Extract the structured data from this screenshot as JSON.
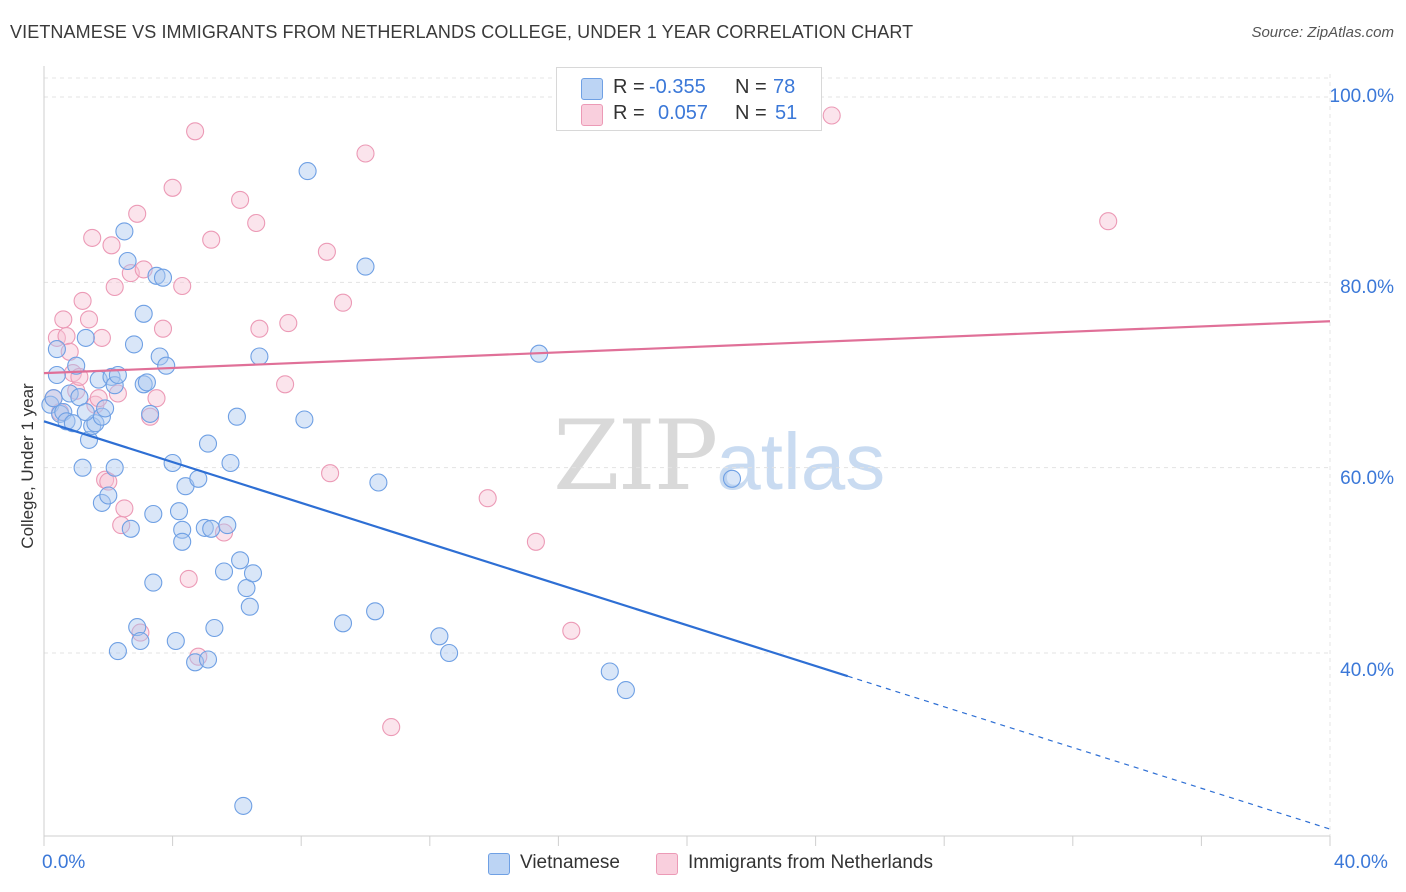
{
  "chart_data": {
    "type": "scatter",
    "title": "VIETNAMESE VS IMMIGRANTS FROM NETHERLANDS COLLEGE, UNDER 1 YEAR CORRELATION CHART",
    "source": "Source: ZipAtlas.com",
    "ylabel": "College, Under 1 year",
    "xlabel": "",
    "xlim": [
      0,
      40
    ],
    "ylim": [
      20,
      104
    ],
    "x_tick_labels": [
      "0.0%",
      "40.0%"
    ],
    "y_ticks": [
      40,
      60,
      80,
      100
    ],
    "y_tick_labels": [
      "40.0%",
      "60.0%",
      "80.0%",
      "100.0%"
    ],
    "grid": true,
    "legend_position": "top-center",
    "colors": {
      "vietnamese": "#6fa0e4",
      "vietnamese_fill": "#aac8f0",
      "vietnamese_line": "#2e6fd4",
      "netherlands": "#ec9ab6",
      "netherlands_fill": "#f6c3d4",
      "netherlands_line": "#e07098",
      "tick_text": "#3b78d8"
    },
    "series": [
      {
        "name": "Vietnamese",
        "r_label": "R =",
        "r_value": "-0.355",
        "n_label": "N =",
        "n_value": "78",
        "trend": {
          "x0": 0,
          "y0": 65.0,
          "x1": 25.0,
          "y1": 37.5,
          "dash_to_x": 40,
          "dash_to_y": 21.0
        },
        "points": [
          [
            0.2,
            66.8
          ],
          [
            0.3,
            67.5
          ],
          [
            0.4,
            70.0
          ],
          [
            0.5,
            65.8
          ],
          [
            0.4,
            72.8
          ],
          [
            0.6,
            66.0
          ],
          [
            0.7,
            65.0
          ],
          [
            0.8,
            68.0
          ],
          [
            0.9,
            64.8
          ],
          [
            1.0,
            71.0
          ],
          [
            1.1,
            67.6
          ],
          [
            1.2,
            60.0
          ],
          [
            1.3,
            74.0
          ],
          [
            1.4,
            63.0
          ],
          [
            1.5,
            64.5
          ],
          [
            1.6,
            64.8
          ],
          [
            1.7,
            69.5
          ],
          [
            1.8,
            65.5
          ],
          [
            1.8,
            56.2
          ],
          [
            1.9,
            66.4
          ],
          [
            2.0,
            57.0
          ],
          [
            2.1,
            69.8
          ],
          [
            2.2,
            68.9
          ],
          [
            2.2,
            60.0
          ],
          [
            2.3,
            70.0
          ],
          [
            2.5,
            85.5
          ],
          [
            2.6,
            82.3
          ],
          [
            2.7,
            53.4
          ],
          [
            2.8,
            73.3
          ],
          [
            2.9,
            42.8
          ],
          [
            3.0,
            41.3
          ],
          [
            3.1,
            76.6
          ],
          [
            3.1,
            69.0
          ],
          [
            3.2,
            69.2
          ],
          [
            3.3,
            65.8
          ],
          [
            3.4,
            55.0
          ],
          [
            3.4,
            47.6
          ],
          [
            3.5,
            80.7
          ],
          [
            3.6,
            72.0
          ],
          [
            3.7,
            80.5
          ],
          [
            3.8,
            71.0
          ],
          [
            4.0,
            60.5
          ],
          [
            4.1,
            41.3
          ],
          [
            4.2,
            55.3
          ],
          [
            4.3,
            53.3
          ],
          [
            4.3,
            52.0
          ],
          [
            4.4,
            58.0
          ],
          [
            4.7,
            39.0
          ],
          [
            4.8,
            58.8
          ],
          [
            5.0,
            53.5
          ],
          [
            5.1,
            39.3
          ],
          [
            5.2,
            53.4
          ],
          [
            5.1,
            62.6
          ],
          [
            5.3,
            42.7
          ],
          [
            5.6,
            48.8
          ],
          [
            5.7,
            53.8
          ],
          [
            5.8,
            60.5
          ],
          [
            6.0,
            65.5
          ],
          [
            6.1,
            50.0
          ],
          [
            6.3,
            47.0
          ],
          [
            6.4,
            45.0
          ],
          [
            6.5,
            48.6
          ],
          [
            6.7,
            72.0
          ],
          [
            8.2,
            92.0
          ],
          [
            8.1,
            65.2
          ],
          [
            9.3,
            43.2
          ],
          [
            10.0,
            81.7
          ],
          [
            10.3,
            44.5
          ],
          [
            10.4,
            58.4
          ],
          [
            12.3,
            41.8
          ],
          [
            12.6,
            40.0
          ],
          [
            15.4,
            72.3
          ],
          [
            17.6,
            38.0
          ],
          [
            18.1,
            36.0
          ],
          [
            21.4,
            58.8
          ],
          [
            6.2,
            23.5
          ],
          [
            2.3,
            40.2
          ],
          [
            1.3,
            66.0
          ]
        ]
      },
      {
        "name": "Immigrants from Netherlands",
        "r_label": "R =",
        "r_value": "0.057",
        "n_label": "N =",
        "n_value": "51",
        "trend": {
          "x0": 0,
          "y0": 70.2,
          "x1": 40,
          "y1": 75.8
        },
        "points": [
          [
            0.3,
            67.5
          ],
          [
            0.4,
            74.0
          ],
          [
            0.5,
            66.0
          ],
          [
            0.6,
            76.0
          ],
          [
            0.7,
            74.2
          ],
          [
            0.8,
            72.5
          ],
          [
            0.9,
            70.2
          ],
          [
            1.0,
            68.3
          ],
          [
            1.1,
            69.8
          ],
          [
            1.2,
            78.0
          ],
          [
            1.4,
            76.0
          ],
          [
            1.5,
            84.8
          ],
          [
            1.6,
            66.8
          ],
          [
            1.7,
            67.5
          ],
          [
            1.8,
            74.0
          ],
          [
            1.9,
            58.7
          ],
          [
            2.0,
            58.5
          ],
          [
            2.1,
            84.0
          ],
          [
            2.2,
            79.5
          ],
          [
            2.3,
            68.0
          ],
          [
            2.4,
            53.8
          ],
          [
            2.5,
            55.6
          ],
          [
            2.7,
            81.0
          ],
          [
            2.9,
            87.4
          ],
          [
            3.0,
            42.2
          ],
          [
            3.1,
            81.4
          ],
          [
            3.3,
            65.5
          ],
          [
            3.5,
            67.5
          ],
          [
            3.7,
            75.0
          ],
          [
            4.0,
            90.2
          ],
          [
            4.3,
            79.6
          ],
          [
            4.5,
            48.0
          ],
          [
            4.7,
            96.3
          ],
          [
            4.8,
            39.6
          ],
          [
            5.2,
            84.6
          ],
          [
            5.6,
            53.0
          ],
          [
            6.1,
            88.9
          ],
          [
            6.6,
            86.4
          ],
          [
            6.7,
            75.0
          ],
          [
            7.5,
            69.0
          ],
          [
            7.6,
            75.6
          ],
          [
            8.8,
            83.3
          ],
          [
            8.9,
            59.4
          ],
          [
            9.3,
            77.8
          ],
          [
            10.0,
            93.9
          ],
          [
            10.8,
            32.0
          ],
          [
            13.8,
            56.7
          ],
          [
            15.3,
            52.0
          ],
          [
            16.4,
            42.4
          ],
          [
            24.5,
            98.0
          ],
          [
            33.1,
            86.6
          ]
        ]
      }
    ]
  },
  "watermark": {
    "zip": "ZIP",
    "atlas": "atlas"
  }
}
